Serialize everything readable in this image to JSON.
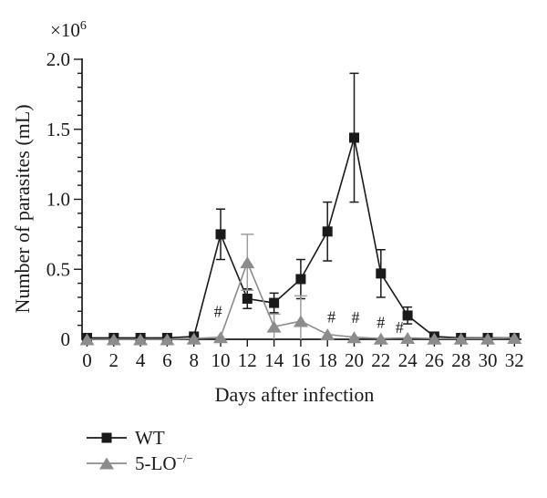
{
  "chart_data": {
    "type": "line",
    "title": "",
    "xlabel": "Days after infection",
    "ylabel": "Number of parasites (mL)",
    "y_offset_base": "×10",
    "y_offset_exp": "6",
    "x": [
      0,
      2,
      4,
      6,
      8,
      10,
      12,
      14,
      16,
      18,
      20,
      22,
      24,
      26,
      28,
      30,
      32
    ],
    "xlim": [
      0,
      32
    ],
    "ylim": [
      0,
      2.0
    ],
    "xticks": [
      0,
      2,
      4,
      6,
      8,
      10,
      12,
      14,
      16,
      18,
      20,
      22,
      24,
      26,
      28,
      30,
      32
    ],
    "yticks": [
      0,
      0.5,
      1.0,
      1.5,
      2.0
    ],
    "ytick_labels": [
      "0",
      "0.5",
      "1.0",
      "1.5",
      "2.0"
    ],
    "y_minor_step": 0.1,
    "grid": false,
    "legend_position": "bottom-left",
    "axis_color": "#1a1a1a",
    "annotation_symbol_meaning": "#",
    "series": [
      {
        "name": "WT",
        "name_sup": "",
        "marker": "square",
        "color": "#1a1a1a",
        "err_color": "#1a1a1a",
        "values": [
          0.01,
          0.01,
          0.01,
          0.01,
          0.02,
          0.75,
          0.29,
          0.26,
          0.43,
          0.77,
          1.44,
          0.47,
          0.17,
          0.02,
          0.01,
          0.01,
          0.01
        ],
        "errors": [
          0,
          0,
          0,
          0,
          0,
          0.18,
          0.07,
          0.07,
          0.14,
          0.21,
          0.46,
          0.17,
          0.06,
          0,
          0,
          0,
          0
        ]
      },
      {
        "name": "5-LO",
        "name_sup": "−/−",
        "marker": "triangle",
        "color": "#8c8c8c",
        "err_color": "#9e9e9e",
        "values": [
          0,
          0,
          0,
          0,
          0.005,
          0.015,
          0.55,
          0.09,
          0.13,
          0.035,
          0.015,
          0.005,
          0.01,
          0.005,
          0.005,
          0.005,
          0.01
        ],
        "errors": [
          0,
          0,
          0,
          0,
          0,
          0,
          0.2,
          0.09,
          0.18,
          0,
          0,
          0,
          0,
          0,
          0,
          0,
          0
        ]
      }
    ],
    "annotations": [
      {
        "text": "#",
        "x": 9.8,
        "y": 0.2
      },
      {
        "text": "#",
        "x": 18.3,
        "y": 0.16
      },
      {
        "text": "#",
        "x": 20.1,
        "y": 0.155
      },
      {
        "text": "#",
        "x": 22.0,
        "y": 0.12
      },
      {
        "text": "#",
        "x": 23.4,
        "y": 0.085
      }
    ]
  }
}
